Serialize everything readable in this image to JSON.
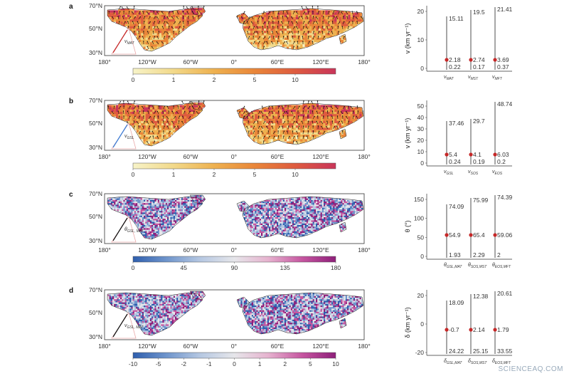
{
  "watermark": "SCIENCEAQ.COM",
  "panels": [
    {
      "id": "a",
      "lat_labels": [
        "70°N",
        "50°N",
        "30°N"
      ],
      "lon_labels": [
        "180°",
        "120°W",
        "60°W",
        "0°",
        "60°E",
        "120°E",
        "180°"
      ],
      "map_style": "speed",
      "inset_label": "v",
      "inset_sub": "MAT",
      "colorbar": {
        "ticks": [
          "0",
          "1",
          "2",
          "5",
          "10"
        ],
        "colors": [
          "#f7f3c8",
          "#f2d98a",
          "#eeb14f",
          "#e98639",
          "#de5b3f",
          "#c9355a"
        ]
      },
      "side": {
        "ylabel": "v (km yr⁻¹)",
        "ylabel_icon": "velocity-symbol",
        "yticks": [
          "20",
          "10",
          "0"
        ],
        "bars": [
          {
            "top": "15.11",
            "mid": "2.18",
            "bot": "0.22",
            "label": "v",
            "sub": "MAT"
          },
          {
            "top": "19.5",
            "mid": "2.74",
            "bot": "0.17",
            "label": "v",
            "sub": "MST"
          },
          {
            "top": "21.41",
            "mid": "3.69",
            "bot": "0.37",
            "label": "v",
            "sub": "MFT"
          }
        ]
      }
    },
    {
      "id": "b",
      "lat_labels": [
        "70°N",
        "50°N",
        "30°N"
      ],
      "lon_labels": [
        "180°",
        "120°W",
        "60°W",
        "0°",
        "60°E",
        "120°E",
        "180°"
      ],
      "map_style": "speed",
      "inset_label": "v",
      "inset_sub": "GSL",
      "colorbar": {
        "ticks": [
          "0",
          "1",
          "2",
          "5",
          "10"
        ],
        "colors": [
          "#f7f3c8",
          "#f2d98a",
          "#eeb14f",
          "#e98639",
          "#de5b3f",
          "#c9355a"
        ]
      },
      "side": {
        "ylabel": "v (km yr⁻¹)",
        "yticks": [
          "50",
          "40",
          "30",
          "20",
          "10",
          "0"
        ],
        "bars": [
          {
            "top": "37.46",
            "mid": "5.4",
            "bot": "0.24",
            "label": "v",
            "sub": "GSL"
          },
          {
            "top": "29.7",
            "mid": "4.1",
            "bot": "0.19",
            "label": "v",
            "sub": "SOS"
          },
          {
            "top": "48.74",
            "mid": "6.03",
            "bot": "0.2",
            "label": "v",
            "sub": "EOS"
          }
        ]
      }
    },
    {
      "id": "c",
      "lat_labels": [
        "70°N",
        "50°N",
        "30°N"
      ],
      "lon_labels": [
        "180°",
        "120°W",
        "60°W",
        "0°",
        "60°E",
        "120°E",
        "180°"
      ],
      "map_style": "angle",
      "inset_label": "θ",
      "inset_sub": "GSL, MAT",
      "colorbar": {
        "ticks": [
          "0",
          "45",
          "90",
          "135",
          "180"
        ],
        "colors": [
          "#2f5fae",
          "#6f95cc",
          "#b6c8e2",
          "#e6e6ea",
          "#e6b3cf",
          "#c656a0",
          "#8e1f7a"
        ]
      },
      "side": {
        "ylabel": "θ (°)",
        "yticks": [
          "150",
          "100",
          "50",
          "0"
        ],
        "bars": [
          {
            "top": "74.09",
            "mid": "54.9",
            "bot": "1.93",
            "label": "θ",
            "sub": "GSL,MAT"
          },
          {
            "top": "75.99",
            "mid": "65.4",
            "bot": "2.29",
            "label": "θ",
            "sub": "SOS,MST"
          },
          {
            "top": "74.39",
            "mid": "59.06",
            "bot": "2",
            "label": "θ",
            "sub": "EOS,MFT"
          }
        ]
      }
    },
    {
      "id": "d",
      "lat_labels": [
        "70°N",
        "50°N",
        "30°N"
      ],
      "lon_labels": [
        "180°",
        "120°W",
        "60°W",
        "0°",
        "60°E",
        "120°E",
        "180°"
      ],
      "map_style": "delta",
      "inset_label": "v",
      "inset_sub": "GSL, MAT",
      "colorbar": {
        "ticks": [
          "-10",
          "-5",
          "-2",
          "-1",
          "0",
          "1",
          "2",
          "5",
          "10"
        ],
        "colors": [
          "#2f5fae",
          "#6f95cc",
          "#b6c8e2",
          "#e6e6ea",
          "#e6b3cf",
          "#c656a0",
          "#8e1f7a"
        ]
      },
      "side": {
        "ylabel": "δ (km yr⁻¹)",
        "yticks": [
          "20",
          "0",
          "-20"
        ],
        "bars": [
          {
            "top": "18.09",
            "mid": "-0.7",
            "bot": "24.22",
            "label": "δ",
            "sub": "GSL,MAT"
          },
          {
            "top": "12.38",
            "mid": "2.14",
            "bot": "25.15",
            "label": "δ",
            "sub": "SOS,MST"
          },
          {
            "top": "20.61",
            "mid": "1.79",
            "bot": "33.55",
            "label": "δ",
            "sub": "EOS,MFT"
          }
        ]
      }
    }
  ]
}
